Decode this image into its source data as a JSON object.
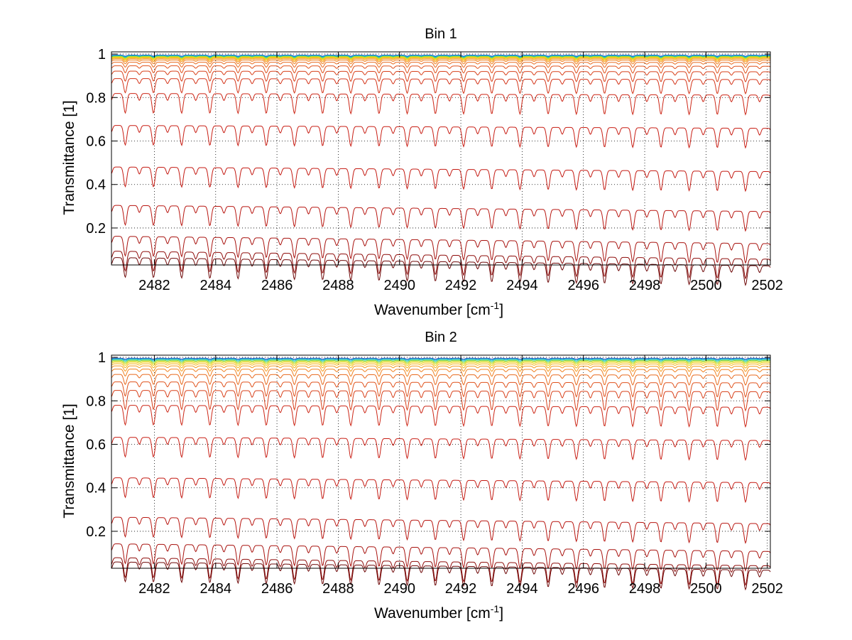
{
  "chart_data": [
    {
      "type": "line",
      "title": "Bin 1",
      "xlabel": "Wavenumber [cm",
      "xlabel_sup": "-1",
      "xlabel_end": "]",
      "ylabel": "Transmittance [1]",
      "xlim": [
        2480.6,
        2502.1
      ],
      "ylim": [
        0.03,
        1.01
      ],
      "xticks": [
        2482,
        2484,
        2486,
        2488,
        2490,
        2492,
        2494,
        2496,
        2498,
        2500,
        2502
      ],
      "xtick_labels": [
        "2482",
        "2484",
        "2486",
        "2488",
        "2490",
        "2492",
        "2494",
        "2496",
        "2498",
        "2500",
        "2502"
      ],
      "yticks": [
        0.2,
        0.4,
        0.6,
        0.8,
        1
      ],
      "ytick_labels": [
        "0.2",
        "0.4",
        "0.6",
        "0.8",
        "1"
      ],
      "grid": true,
      "line_spacing_cm1": 0.92,
      "line_offset_cm1": 2481.05,
      "series": [
        {
          "baseline": 0.995,
          "color": "#1f4fbf"
        },
        {
          "baseline": 0.993,
          "color": "#12a0d8"
        },
        {
          "baseline": 0.991,
          "color": "#1ec8b0"
        },
        {
          "baseline": 0.989,
          "color": "#7fd64a"
        },
        {
          "baseline": 0.987,
          "color": "#c8dc22"
        },
        {
          "baseline": 0.985,
          "color": "#f0d21a"
        },
        {
          "baseline": 0.982,
          "color": "#f5b51c"
        },
        {
          "baseline": 0.978,
          "color": "#f59a1e"
        },
        {
          "baseline": 0.972,
          "color": "#f08020"
        },
        {
          "baseline": 0.962,
          "color": "#e86a1e"
        },
        {
          "baseline": 0.945,
          "color": "#e0521c"
        },
        {
          "baseline": 0.92,
          "color": "#d8401a"
        },
        {
          "baseline": 0.885,
          "color": "#d33318"
        },
        {
          "baseline": 0.815,
          "color": "#cc2616"
        },
        {
          "baseline": 0.665,
          "color": "#c81e14"
        },
        {
          "baseline": 0.47,
          "color": "#c41a12"
        },
        {
          "baseline": 0.29,
          "color": "#b81610"
        },
        {
          "baseline": 0.145,
          "color": "#a8120e"
        },
        {
          "baseline": 0.075,
          "color": "#8e0c0a"
        },
        {
          "baseline": 0.045,
          "color": "#6e0808"
        }
      ]
    },
    {
      "type": "line",
      "title": "Bin 2",
      "xlabel": "Wavenumber [cm",
      "xlabel_sup": "-1",
      "xlabel_end": "]",
      "ylabel": "Transmittance [1]",
      "xlim": [
        2480.6,
        2502.1
      ],
      "ylim": [
        0.03,
        1.01
      ],
      "xticks": [
        2482,
        2484,
        2486,
        2488,
        2490,
        2492,
        2494,
        2496,
        2498,
        2500,
        2502
      ],
      "xtick_labels": [
        "2482",
        "2484",
        "2486",
        "2488",
        "2490",
        "2492",
        "2494",
        "2496",
        "2498",
        "2500",
        "2502"
      ],
      "yticks": [
        0.2,
        0.4,
        0.6,
        0.8,
        1
      ],
      "ytick_labels": [
        "0.2",
        "0.4",
        "0.6",
        "0.8",
        "1"
      ],
      "grid": true,
      "line_spacing_cm1": 0.92,
      "line_offset_cm1": 2481.05,
      "series": [
        {
          "baseline": 0.996,
          "color": "#1f4fbf"
        },
        {
          "baseline": 0.993,
          "color": "#12a0d8"
        },
        {
          "baseline": 0.99,
          "color": "#1ec8b0"
        },
        {
          "baseline": 0.986,
          "color": "#7fd64a"
        },
        {
          "baseline": 0.982,
          "color": "#c8dc22"
        },
        {
          "baseline": 0.977,
          "color": "#f0d21a"
        },
        {
          "baseline": 0.97,
          "color": "#f5b51c"
        },
        {
          "baseline": 0.96,
          "color": "#f59a1e"
        },
        {
          "baseline": 0.945,
          "color": "#f08020"
        },
        {
          "baseline": 0.92,
          "color": "#e86a1e"
        },
        {
          "baseline": 0.885,
          "color": "#e0521c"
        },
        {
          "baseline": 0.845,
          "color": "#d8401a"
        },
        {
          "baseline": 0.775,
          "color": "#cc2616"
        },
        {
          "baseline": 0.625,
          "color": "#c81e14"
        },
        {
          "baseline": 0.435,
          "color": "#c41a12"
        },
        {
          "baseline": 0.25,
          "color": "#b81610"
        },
        {
          "baseline": 0.125,
          "color": "#a8120e"
        },
        {
          "baseline": 0.06,
          "color": "#8e0c0a"
        },
        {
          "baseline": 0.04,
          "color": "#6e0808"
        }
      ]
    }
  ]
}
